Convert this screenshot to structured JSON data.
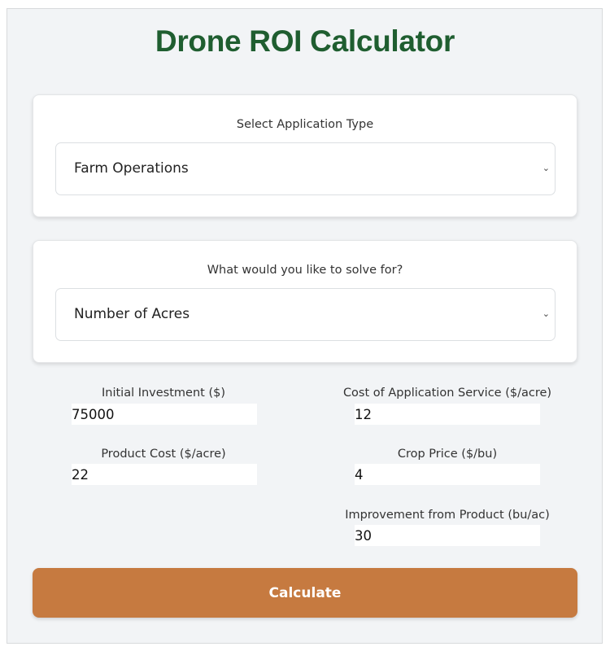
{
  "title": "Drone ROI Calculator",
  "application_type": {
    "label": "Select Application Type",
    "selected": "Farm Operations",
    "icon": "chevron-down-icon"
  },
  "solve_for": {
    "label": "What would you like to solve for?",
    "selected": "Number of Acres",
    "icon": "chevron-down-icon"
  },
  "fields": {
    "initial_investment": {
      "label": "Initial Investment ($)",
      "value": "75000"
    },
    "application_service_cost": {
      "label": "Cost of Application Service ($/acre)",
      "value": "12"
    },
    "product_cost": {
      "label": "Product Cost ($/acre)",
      "value": "22"
    },
    "crop_price": {
      "label": "Crop Price ($/bu)",
      "value": "4"
    },
    "improvement": {
      "label": "Improvement from Product (bu/ac)",
      "value": "30"
    }
  },
  "calculate_label": "Calculate",
  "colors": {
    "title": "#1f5e30",
    "button": "#c67a40",
    "background": "#f2f4f6"
  }
}
